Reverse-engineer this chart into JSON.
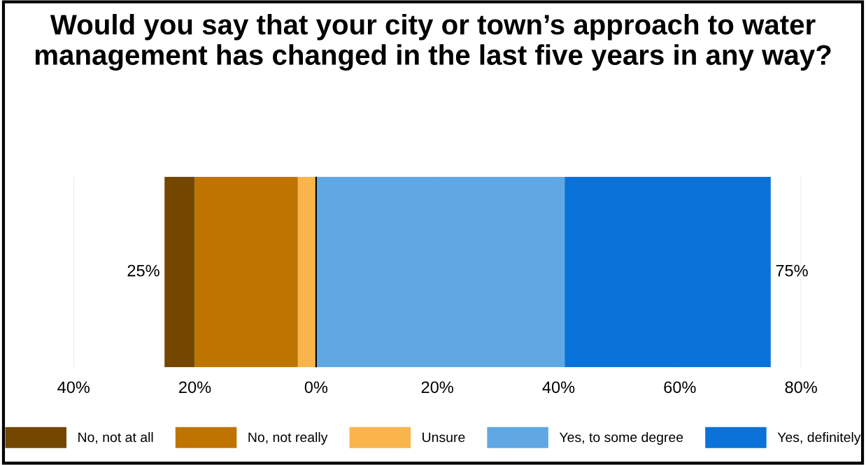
{
  "chart_data": {
    "type": "bar",
    "orientation": "horizontal",
    "stacked": true,
    "title": "Would you say that your city or town’s approach to water management has changed in the last five years in any way?",
    "categories": [
      null
    ],
    "series": [
      {
        "name": "No, not at all",
        "color": "#744700",
        "values": [
          -5
        ]
      },
      {
        "name": "No, not really",
        "color": "#c07400",
        "values": [
          -17
        ]
      },
      {
        "name": "Unsure",
        "color": "#f9b54c",
        "values": [
          -3
        ]
      },
      {
        "name": "Yes, to some degree",
        "color": "#5fa8e3",
        "values": [
          41
        ]
      },
      {
        "name": "Yes, definitely",
        "color": "#0a72d8",
        "values": [
          34
        ]
      }
    ],
    "xlim": [
      -40,
      80
    ],
    "xticks": [
      {
        "value": -40,
        "label": "40%"
      },
      {
        "value": -20,
        "label": "20%"
      },
      {
        "value": 0,
        "label": "0%"
      },
      {
        "value": 20,
        "label": "20%"
      },
      {
        "value": 40,
        "label": "40%"
      },
      {
        "value": 60,
        "label": "60%"
      },
      {
        "value": 80,
        "label": "80%"
      }
    ],
    "tick_labels": "x",
    "annotations": [
      {
        "text": "25%",
        "x": -25
      },
      {
        "text": "75%",
        "x": 75
      }
    ],
    "ref_lines": [
      {
        "axis": "x",
        "value": 0,
        "color": "#000000"
      }
    ],
    "grid": "x",
    "legend": "bottom"
  }
}
